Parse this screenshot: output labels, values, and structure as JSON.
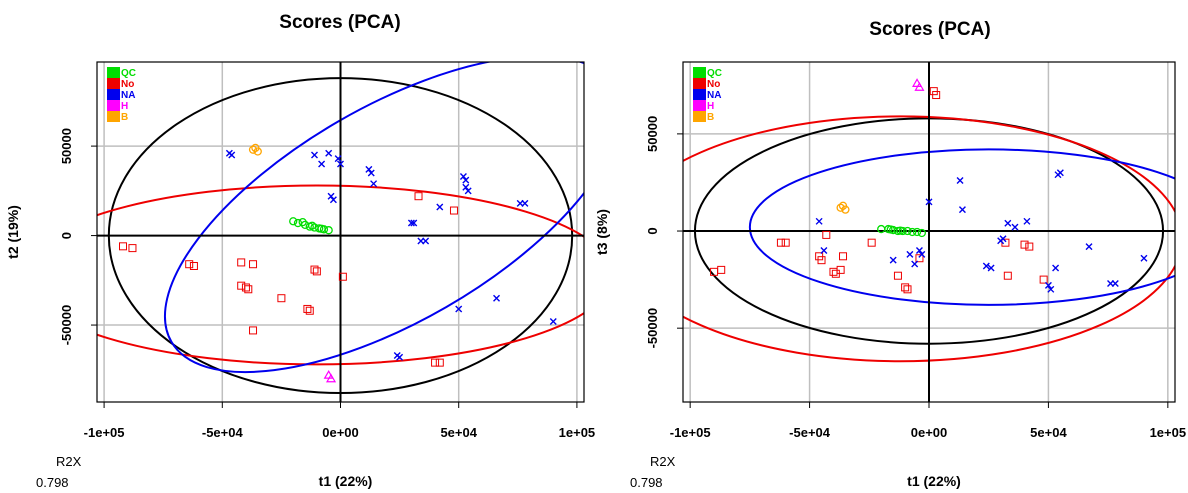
{
  "chart_data": [
    {
      "type": "scatter",
      "title": "Scores (PCA)",
      "xlabel": "t1 (22%)",
      "ylabel": "t2 (19%)",
      "r2x_label": "R2X",
      "r2x_value": "0.798",
      "xlim": [
        -103000,
        103000
      ],
      "ylim": [
        -93000,
        97000
      ],
      "xticks": [
        -100000,
        -50000,
        0,
        50000,
        100000
      ],
      "xtick_labels": [
        "-1e+05",
        "-5e+04",
        "0e+00",
        "5e+04",
        "1e+05"
      ],
      "yticks": [
        -50000,
        0,
        50000
      ],
      "ytick_labels": [
        "-50000",
        "0",
        "50000"
      ],
      "grid": true,
      "legend": [
        {
          "label": "QC",
          "color": "#00dd00"
        },
        {
          "label": "No",
          "color": "#ee0000"
        },
        {
          "label": "NA",
          "color": "#0000ee"
        },
        {
          "label": "H",
          "color": "#ff00ff"
        },
        {
          "label": "B",
          "color": "#ffa500"
        }
      ],
      "ellipses": [
        {
          "group": "All",
          "color": "#000000",
          "cx": 0,
          "cy": 0,
          "rx": 98000,
          "ry": 88000,
          "angle": 0
        },
        {
          "group": "No",
          "color": "#ee0000",
          "cx": -10000,
          "cy": -22000,
          "rx": 125000,
          "ry": 50000,
          "angle": 0
        },
        {
          "group": "NA",
          "color": "#0000ee",
          "cx": 22000,
          "cy": 12000,
          "rx": 108000,
          "ry": 60000,
          "angle": -30
        }
      ],
      "series": [
        {
          "name": "QC",
          "marker": "circle",
          "color": "#00dd00",
          "points": [
            [
              -20000,
              8000
            ],
            [
              -18000,
              7000
            ],
            [
              -15000,
              6000
            ],
            [
              -13000,
              5000
            ],
            [
              -11000,
              4500
            ],
            [
              -9000,
              4000
            ],
            [
              -7000,
              3500
            ],
            [
              -5000,
              3000
            ],
            [
              -16000,
              7500
            ],
            [
              -12000,
              5500
            ],
            [
              -8000,
              3800
            ]
          ]
        },
        {
          "name": "No",
          "marker": "square",
          "color": "#ee0000",
          "points": [
            [
              -92000,
              -6000
            ],
            [
              -88000,
              -7000
            ],
            [
              -64000,
              -16000
            ],
            [
              -62000,
              -17000
            ],
            [
              -42000,
              -15000
            ],
            [
              -37000,
              -16000
            ],
            [
              -42000,
              -28000
            ],
            [
              -40000,
              -29000
            ],
            [
              -39000,
              -30000
            ],
            [
              -25000,
              -35000
            ],
            [
              -37000,
              -53000
            ],
            [
              -14000,
              -41000
            ],
            [
              -13000,
              -42000
            ],
            [
              -11000,
              -19000
            ],
            [
              -10000,
              -20000
            ],
            [
              1000,
              -23000
            ],
            [
              33000,
              22000
            ],
            [
              48000,
              14000
            ],
            [
              40000,
              -71000
            ],
            [
              42000,
              -71000
            ]
          ]
        },
        {
          "name": "NA",
          "marker": "x",
          "color": "#0000ee",
          "points": [
            [
              -47000,
              46000
            ],
            [
              -46000,
              45000
            ],
            [
              -11000,
              45000
            ],
            [
              -8000,
              40000
            ],
            [
              -5000,
              46000
            ],
            [
              -4000,
              22000
            ],
            [
              -3000,
              20000
            ],
            [
              -1000,
              43000
            ],
            [
              0,
              40000
            ],
            [
              12000,
              37000
            ],
            [
              13000,
              35000
            ],
            [
              14000,
              29000
            ],
            [
              30000,
              7000
            ],
            [
              31000,
              7000
            ],
            [
              34000,
              -3000
            ],
            [
              36000,
              -3000
            ],
            [
              42000,
              16000
            ],
            [
              50000,
              -41000
            ],
            [
              52000,
              33000
            ],
            [
              53000,
              31000
            ],
            [
              53000,
              27000
            ],
            [
              54000,
              25000
            ],
            [
              66000,
              -35000
            ],
            [
              76000,
              18000
            ],
            [
              78000,
              18000
            ],
            [
              90000,
              -48000
            ],
            [
              24000,
              -67000
            ],
            [
              25000,
              -68000
            ]
          ]
        },
        {
          "name": "H",
          "marker": "triangle",
          "color": "#ff00ff",
          "points": [
            [
              -5000,
              -78000
            ],
            [
              -4000,
              -80000
            ]
          ]
        },
        {
          "name": "B",
          "marker": "circle",
          "color": "#ffa500",
          "points": [
            [
              -37000,
              48000
            ],
            [
              -36000,
              49000
            ],
            [
              -35000,
              47000
            ]
          ]
        }
      ]
    },
    {
      "type": "scatter",
      "title": "Scores (PCA)",
      "xlabel": "t1 (22%)",
      "ylabel": "t3 (8%)",
      "r2x_label": "R2X",
      "r2x_value": "0.798",
      "xlim": [
        -103000,
        103000
      ],
      "ylim": [
        -88000,
        87000
      ],
      "xticks": [
        -100000,
        -50000,
        0,
        50000,
        100000
      ],
      "xtick_labels": [
        "-1e+05",
        "-5e+04",
        "0e+00",
        "5e+04",
        "1e+05"
      ],
      "yticks": [
        -50000,
        0,
        50000
      ],
      "ytick_labels": [
        "-50000",
        "0",
        "50000"
      ],
      "grid": true,
      "legend": [
        {
          "label": "QC",
          "color": "#00dd00"
        },
        {
          "label": "No",
          "color": "#ee0000"
        },
        {
          "label": "NA",
          "color": "#0000ee"
        },
        {
          "label": "H",
          "color": "#ff00ff"
        },
        {
          "label": "B",
          "color": "#ffa500"
        }
      ],
      "ellipses": [
        {
          "group": "All",
          "color": "#000000",
          "cx": 0,
          "cy": 0,
          "rx": 98000,
          "ry": 58000,
          "angle": 0
        },
        {
          "group": "No",
          "color": "#ee0000",
          "cx": -12000,
          "cy": -4000,
          "rx": 118000,
          "ry": 63000,
          "angle": 0
        },
        {
          "group": "NA",
          "color": "#0000ee",
          "cx": 25000,
          "cy": 2000,
          "rx": 100000,
          "ry": 40000,
          "angle": 0
        }
      ],
      "series": [
        {
          "name": "QC",
          "marker": "circle",
          "color": "#00dd00",
          "points": [
            [
              -20000,
              1000
            ],
            [
              -17000,
              1000
            ],
            [
              -15000,
              500
            ],
            [
              -13000,
              0
            ],
            [
              -11000,
              0
            ],
            [
              -9000,
              0
            ],
            [
              -7000,
              -500
            ],
            [
              -5000,
              -500
            ],
            [
              -3000,
              -1000
            ],
            [
              -16000,
              800
            ],
            [
              -12000,
              200
            ]
          ]
        },
        {
          "name": "No",
          "marker": "square",
          "color": "#ee0000",
          "points": [
            [
              -90000,
              -21000
            ],
            [
              -87000,
              -20000
            ],
            [
              -62000,
              -6000
            ],
            [
              -60000,
              -6000
            ],
            [
              -46000,
              -13000
            ],
            [
              -45000,
              -15000
            ],
            [
              -43000,
              -2000
            ],
            [
              -40000,
              -21000
            ],
            [
              -39000,
              -22000
            ],
            [
              -37000,
              -20000
            ],
            [
              -36000,
              -13000
            ],
            [
              -24000,
              -6000
            ],
            [
              -13000,
              -23000
            ],
            [
              -10000,
              -29000
            ],
            [
              -9000,
              -30000
            ],
            [
              -4000,
              -14000
            ],
            [
              2000,
              72000
            ],
            [
              3000,
              70000
            ],
            [
              32000,
              -6000
            ],
            [
              40000,
              -7000
            ],
            [
              42000,
              -8000
            ],
            [
              48000,
              -25000
            ],
            [
              33000,
              -23000
            ]
          ]
        },
        {
          "name": "NA",
          "marker": "x",
          "color": "#0000ee",
          "points": [
            [
              -46000,
              5000
            ],
            [
              -44000,
              -10000
            ],
            [
              -8000,
              -12000
            ],
            [
              -6000,
              -17000
            ],
            [
              -4000,
              -10000
            ],
            [
              -3000,
              -12000
            ],
            [
              0,
              15000
            ],
            [
              13000,
              26000
            ],
            [
              14000,
              11000
            ],
            [
              24000,
              -18000
            ],
            [
              26000,
              -19000
            ],
            [
              30000,
              -5000
            ],
            [
              31000,
              -4000
            ],
            [
              33000,
              4000
            ],
            [
              36000,
              2000
            ],
            [
              41000,
              5000
            ],
            [
              50000,
              -28000
            ],
            [
              51000,
              -30000
            ],
            [
              53000,
              -19000
            ],
            [
              54000,
              29000
            ],
            [
              55000,
              30000
            ],
            [
              67000,
              -8000
            ],
            [
              76000,
              -27000
            ],
            [
              78000,
              -27000
            ],
            [
              90000,
              -14000
            ],
            [
              -15000,
              -15000
            ]
          ]
        },
        {
          "name": "H",
          "marker": "triangle",
          "color": "#ff00ff",
          "points": [
            [
              -5000,
              76000
            ],
            [
              -4000,
              74000
            ]
          ]
        },
        {
          "name": "B",
          "marker": "circle",
          "color": "#ffa500",
          "points": [
            [
              -37000,
              12000
            ],
            [
              -36000,
              13000
            ],
            [
              -35000,
              11000
            ]
          ]
        }
      ]
    }
  ]
}
